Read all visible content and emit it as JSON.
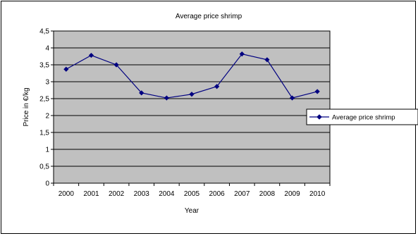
{
  "chart_data": {
    "type": "line",
    "title": "Average price shrimp",
    "xlabel": "Year",
    "ylabel": "Price in €/kg",
    "categories": [
      "2000",
      "2001",
      "2002",
      "2003",
      "2004",
      "2005",
      "2006",
      "2007",
      "2008",
      "2009",
      "2010"
    ],
    "y_ticks": [
      "0",
      "0,5",
      "1",
      "1,5",
      "2",
      "2,5",
      "3",
      "3,5",
      "4",
      "4,5"
    ],
    "ylim": [
      0,
      4.5
    ],
    "grid": "horizontal",
    "legend_position": "right",
    "series": [
      {
        "name": "Average price shrimp",
        "values": [
          3.37,
          3.78,
          3.5,
          2.67,
          2.52,
          2.63,
          2.86,
          3.82,
          3.65,
          2.52,
          2.71
        ]
      }
    ],
    "colors": {
      "plot_background": "#c0c0c0",
      "line": "#000080",
      "gridline": "#000000"
    }
  }
}
